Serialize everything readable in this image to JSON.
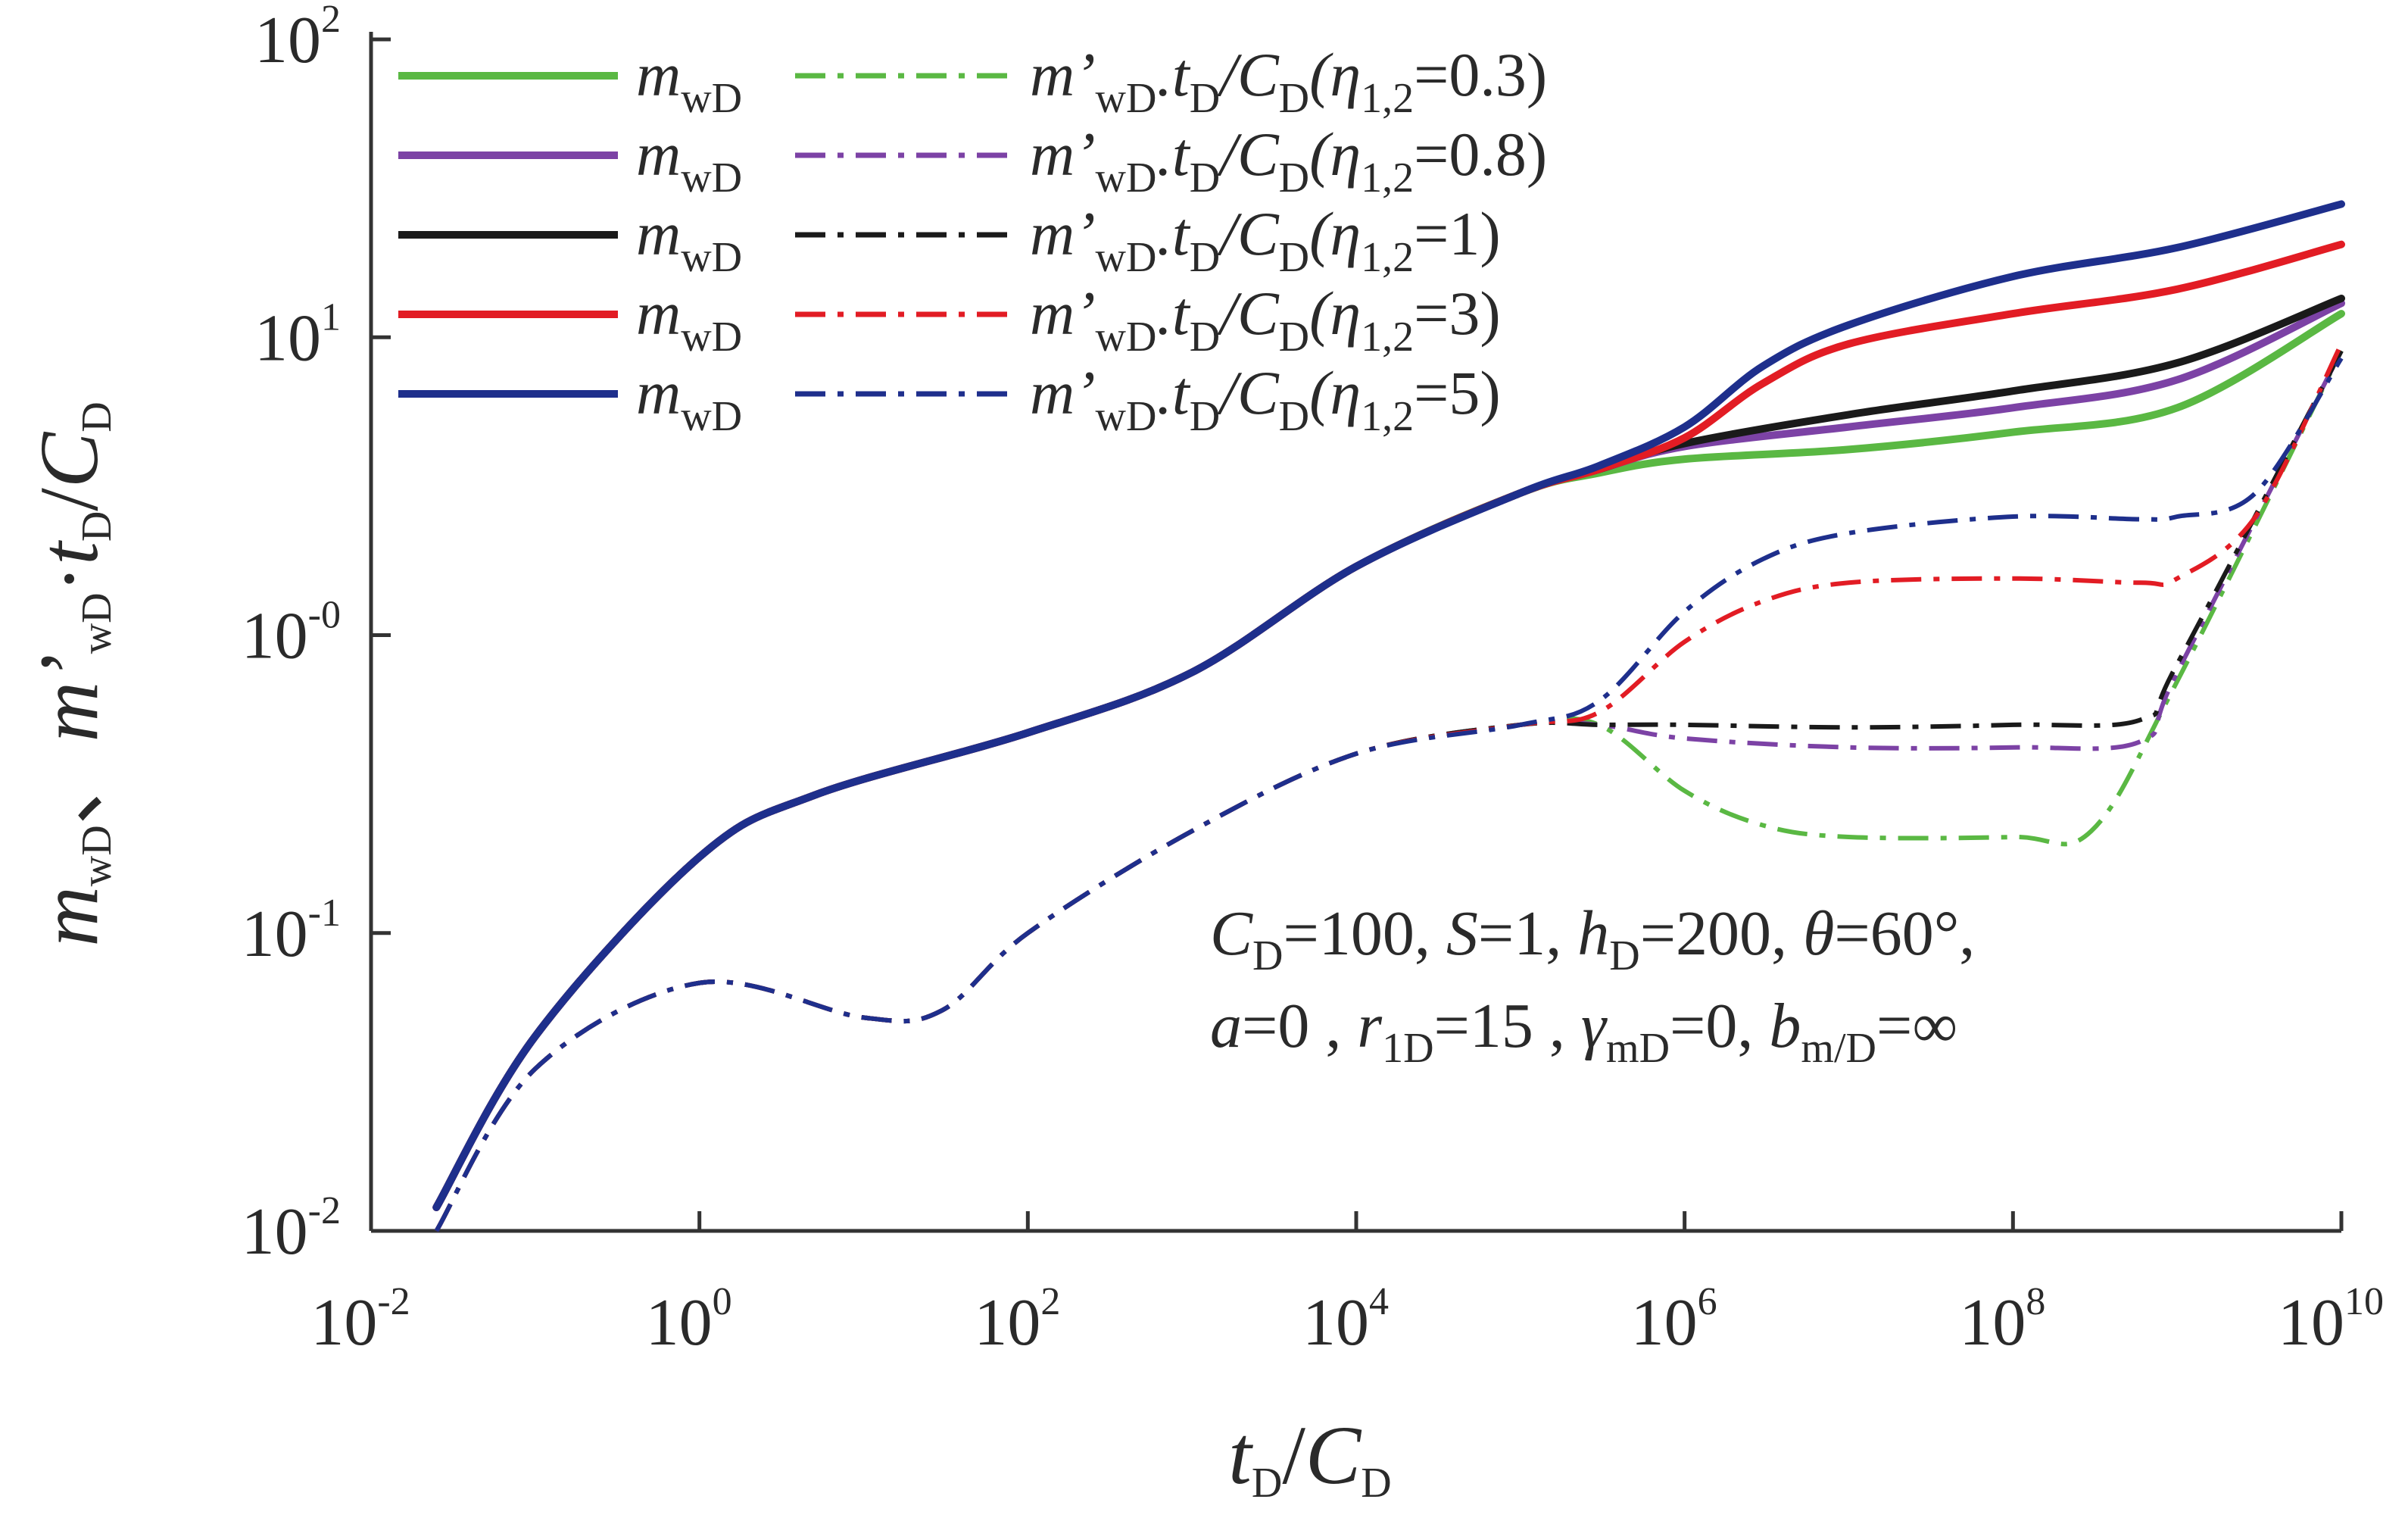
{
  "chart_data": {
    "type": "line",
    "xscale": "log",
    "yscale": "log",
    "xlim": [
      0.01,
      10000000000.0
    ],
    "ylim": [
      0.01,
      100
    ],
    "x_ticks": [
      {
        "base": "10",
        "exp": "-2"
      },
      {
        "base": "10",
        "exp": "0"
      },
      {
        "base": "10",
        "exp": "2"
      },
      {
        "base": "10",
        "exp": "4"
      },
      {
        "base": "10",
        "exp": "6"
      },
      {
        "base": "10",
        "exp": "8"
      },
      {
        "base": "10",
        "exp": "10"
      }
    ],
    "y_ticks": [
      {
        "base": "10",
        "exp": "-2"
      },
      {
        "base": "10",
        "exp": "-1"
      },
      {
        "base": "10",
        "exp": "-0"
      },
      {
        "base": "10",
        "exp": "1"
      },
      {
        "base": "10",
        "exp": "2"
      }
    ],
    "xlabel": {
      "t": "t",
      "t_sub": "D",
      "slash": "/",
      "c": "C",
      "c_sub": "D"
    },
    "ylabel": {
      "m": "m",
      "m_sub": "wD",
      "sep": "、",
      "mp": "m’",
      "mp_sub": "wD",
      "dot": "·",
      "t": "t",
      "t_sub": "D",
      "slash": "/",
      "c": "C",
      "c_sub": "D"
    },
    "legend": {
      "placement": "top-left",
      "m_text": "m",
      "m_sub": "wD",
      "deriv_prefix": "m’",
      "deriv_sub1": "wD",
      "deriv_mid": ".t",
      "deriv_sub2": "D",
      "deriv_slash": "/C",
      "deriv_sub3": "D",
      "eta_open": "(η",
      "eta_sub": "1,2",
      "eta_close_prefix": "="
    },
    "series": [
      {
        "name": "η1,2=0.3",
        "eta": "0.3",
        "color": "#5ab843",
        "mwd": [
          [
            0.025,
            0.012
          ],
          [
            0.1,
            0.045
          ],
          [
            1,
            0.18
          ],
          [
            5,
            0.29
          ],
          [
            100,
            0.47
          ],
          [
            1000,
            0.75
          ],
          [
            10000,
            1.7
          ],
          [
            100000,
            3.0
          ],
          [
            300000,
            3.5
          ],
          [
            1000000,
            3.9
          ],
          [
            10000000,
            4.2
          ],
          [
            100000000,
            4.8
          ],
          [
            1000000000,
            5.8
          ],
          [
            10000000000,
            12
          ]
        ],
        "deriv": [
          [
            0.025,
            0.01
          ],
          [
            0.1,
            0.035
          ],
          [
            1,
            0.068
          ],
          [
            10,
            0.052
          ],
          [
            30,
            0.055
          ],
          [
            100,
            0.1
          ],
          [
            1000,
            0.22
          ],
          [
            10000,
            0.4
          ],
          [
            100000,
            0.5
          ],
          [
            300000,
            0.5
          ],
          [
            1000000,
            0.3
          ],
          [
            3000000,
            0.23
          ],
          [
            10000000,
            0.21
          ],
          [
            100000000,
            0.21
          ],
          [
            300000000,
            0.22
          ],
          [
            1000000000,
            0.7
          ],
          [
            10000000000,
            9
          ]
        ]
      },
      {
        "name": "η1,2=0.8",
        "eta": "0.8",
        "color": "#7c42a5",
        "mwd": [
          [
            0.025,
            0.012
          ],
          [
            0.1,
            0.045
          ],
          [
            1,
            0.18
          ],
          [
            5,
            0.29
          ],
          [
            100,
            0.47
          ],
          [
            1000,
            0.75
          ],
          [
            10000,
            1.7
          ],
          [
            100000,
            3.0
          ],
          [
            300000,
            3.6
          ],
          [
            1000000,
            4.3
          ],
          [
            10000000,
            5.0
          ],
          [
            100000000,
            5.8
          ],
          [
            1000000000,
            7.2
          ],
          [
            10000000000,
            13
          ]
        ],
        "deriv": [
          [
            0.025,
            0.01
          ],
          [
            0.1,
            0.035
          ],
          [
            1,
            0.068
          ],
          [
            10,
            0.052
          ],
          [
            30,
            0.055
          ],
          [
            100,
            0.1
          ],
          [
            1000,
            0.22
          ],
          [
            10000,
            0.4
          ],
          [
            100000,
            0.5
          ],
          [
            300000,
            0.5
          ],
          [
            1000000,
            0.45
          ],
          [
            10000000,
            0.42
          ],
          [
            100000000,
            0.42
          ],
          [
            600000000,
            0.44
          ],
          [
            1000000000,
            0.75
          ],
          [
            10000000000,
            9
          ]
        ]
      },
      {
        "name": "η1,2=1",
        "eta": "1",
        "color": "#1a1a1a",
        "mwd": [
          [
            0.025,
            0.012
          ],
          [
            0.1,
            0.045
          ],
          [
            1,
            0.18
          ],
          [
            5,
            0.29
          ],
          [
            100,
            0.47
          ],
          [
            1000,
            0.75
          ],
          [
            10000,
            1.7
          ],
          [
            100000,
            3.0
          ],
          [
            300000,
            3.6
          ],
          [
            1000000,
            4.4
          ],
          [
            10000000,
            5.5
          ],
          [
            100000000,
            6.6
          ],
          [
            1000000000,
            8.2
          ],
          [
            10000000000,
            13.5
          ]
        ],
        "deriv": [
          [
            0.025,
            0.01
          ],
          [
            0.1,
            0.035
          ],
          [
            1,
            0.068
          ],
          [
            10,
            0.052
          ],
          [
            30,
            0.055
          ],
          [
            100,
            0.1
          ],
          [
            1000,
            0.22
          ],
          [
            10000,
            0.4
          ],
          [
            100000,
            0.5
          ],
          [
            300000,
            0.5
          ],
          [
            1000000,
            0.5
          ],
          [
            10000000,
            0.49
          ],
          [
            100000000,
            0.5
          ],
          [
            600000000,
            0.52
          ],
          [
            1000000000,
            0.8
          ],
          [
            10000000000,
            9
          ]
        ]
      },
      {
        "name": "η1,2=3",
        "eta": "3",
        "color": "#e21c24",
        "mwd": [
          [
            0.025,
            0.012
          ],
          [
            0.1,
            0.045
          ],
          [
            1,
            0.18
          ],
          [
            5,
            0.29
          ],
          [
            100,
            0.47
          ],
          [
            1000,
            0.75
          ],
          [
            10000,
            1.7
          ],
          [
            100000,
            3.0
          ],
          [
            300000,
            3.6
          ],
          [
            1000000,
            4.6
          ],
          [
            3000000,
            7.0
          ],
          [
            10000000,
            9.5
          ],
          [
            100000000,
            12
          ],
          [
            1000000000,
            14.5
          ],
          [
            10000000000,
            20.5
          ]
        ],
        "deriv": [
          [
            0.025,
            0.01
          ],
          [
            0.1,
            0.035
          ],
          [
            1,
            0.068
          ],
          [
            10,
            0.052
          ],
          [
            30,
            0.055
          ],
          [
            100,
            0.1
          ],
          [
            1000,
            0.22
          ],
          [
            10000,
            0.4
          ],
          [
            100000,
            0.5
          ],
          [
            300000,
            0.55
          ],
          [
            1000000,
            0.95
          ],
          [
            3000000,
            1.3
          ],
          [
            10000000,
            1.5
          ],
          [
            100000000,
            1.55
          ],
          [
            600000000,
            1.5
          ],
          [
            1000000000,
            1.55
          ],
          [
            3000000000,
            2.5
          ],
          [
            10000000000,
            9.5
          ]
        ]
      },
      {
        "name": "η1,2=5",
        "eta": "5",
        "color": "#1e2f8c",
        "mwd": [
          [
            0.025,
            0.012
          ],
          [
            0.1,
            0.045
          ],
          [
            1,
            0.18
          ],
          [
            5,
            0.29
          ],
          [
            100,
            0.47
          ],
          [
            1000,
            0.75
          ],
          [
            10000,
            1.7
          ],
          [
            100000,
            3.0
          ],
          [
            300000,
            3.7
          ],
          [
            1000000,
            5.0
          ],
          [
            3000000,
            8.0
          ],
          [
            10000000,
            11
          ],
          [
            100000000,
            16
          ],
          [
            1000000000,
            20
          ],
          [
            10000000000,
            28
          ]
        ],
        "deriv": [
          [
            0.025,
            0.01
          ],
          [
            0.1,
            0.035
          ],
          [
            1,
            0.068
          ],
          [
            10,
            0.052
          ],
          [
            30,
            0.055
          ],
          [
            100,
            0.1
          ],
          [
            1000,
            0.22
          ],
          [
            10000,
            0.4
          ],
          [
            100000,
            0.5
          ],
          [
            300000,
            0.6
          ],
          [
            1000000,
            1.2
          ],
          [
            3000000,
            1.8
          ],
          [
            10000000,
            2.2
          ],
          [
            100000000,
            2.5
          ],
          [
            600000000,
            2.45
          ],
          [
            1000000000,
            2.5
          ],
          [
            3000000000,
            3.0
          ],
          [
            10000000000,
            8.5
          ]
        ]
      }
    ],
    "annotation": {
      "line1": [
        {
          "t": "C",
          "i": true
        },
        {
          "t": "D",
          "s": true
        },
        {
          "t": "=100,  "
        },
        {
          "t": "S",
          "i": true
        },
        {
          "t": "=1,  "
        },
        {
          "t": "h",
          "i": true
        },
        {
          "t": "D",
          "s": true
        },
        {
          "t": "=200,  "
        },
        {
          "t": "θ",
          "i": true
        },
        {
          "t": "=60°,"
        }
      ],
      "line2": [
        {
          "t": "a",
          "i": true
        },
        {
          "t": "=0 ,  "
        },
        {
          "t": "r",
          "i": true
        },
        {
          "t": "1D",
          "s": true
        },
        {
          "t": "=15 ,  "
        },
        {
          "t": "γ",
          "i": true
        },
        {
          "t": "mD",
          "s": true
        },
        {
          "t": "=0,  "
        },
        {
          "t": "b",
          "i": true
        },
        {
          "t": "m/D",
          "s": true
        },
        {
          "t": "=∞"
        }
      ]
    }
  }
}
